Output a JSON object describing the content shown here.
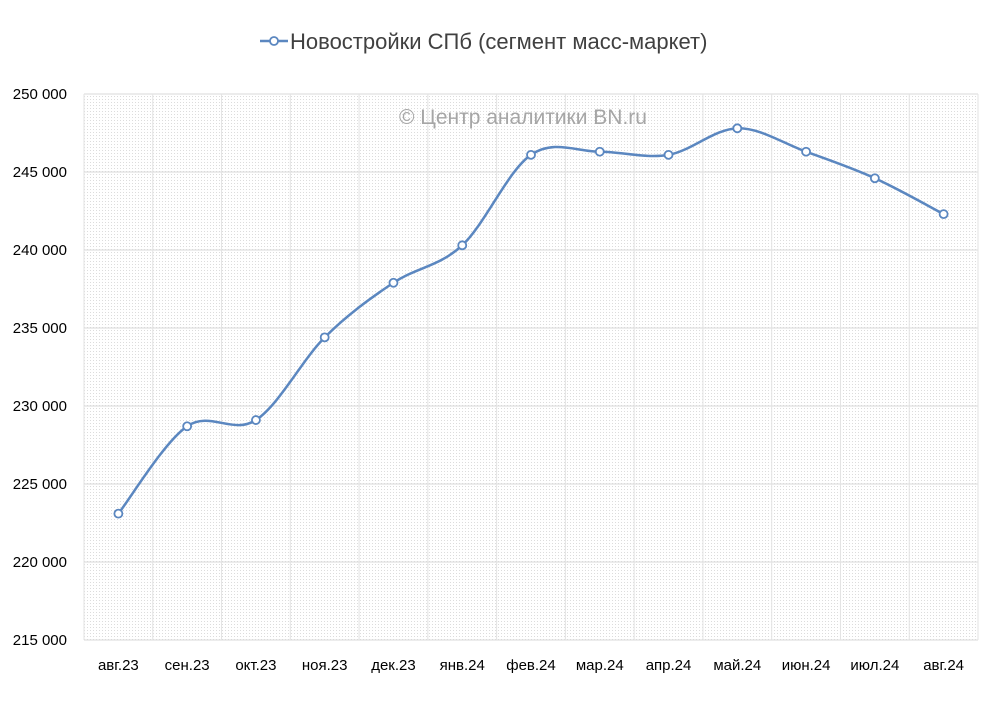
{
  "chart_data": {
    "type": "line",
    "title": "",
    "watermark": "© Центр аналитики BN.ru",
    "legend_position": "top",
    "grid": true,
    "smooth": true,
    "xlabel": "",
    "ylabel": "",
    "ylim": [
      215000,
      250000
    ],
    "y_ticks": [
      215000,
      220000,
      225000,
      230000,
      235000,
      240000,
      245000,
      250000
    ],
    "y_tick_labels": [
      "215 000",
      "220 000",
      "225 000",
      "230 000",
      "235 000",
      "240 000",
      "245 000",
      "250 000"
    ],
    "categories": [
      "авг.23",
      "сен.23",
      "окт.23",
      "ноя.23",
      "дек.23",
      "янв.24",
      "фев.24",
      "мар.24",
      "апр.24",
      "май.24",
      "июн.24",
      "июл.24",
      "авг.24"
    ],
    "series": [
      {
        "name": "Новостройки СПб (сегмент масс-маркет)",
        "color": "#5b87c0",
        "values": [
          223100,
          228700,
          229100,
          234400,
          237900,
          240300,
          246100,
          246300,
          246100,
          247800,
          246300,
          244600,
          242300
        ]
      }
    ]
  }
}
